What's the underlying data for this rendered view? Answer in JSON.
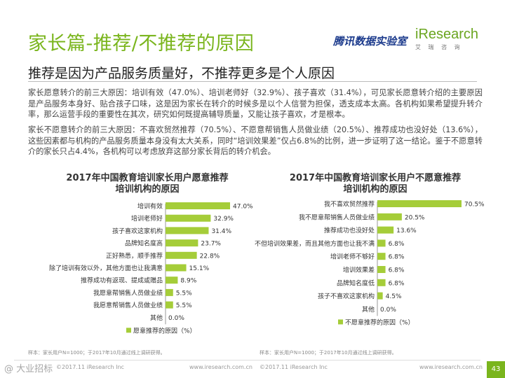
{
  "header": {
    "title": "家长篇-推荐/不推荐的原因",
    "subtitle": "推荐是因为产品服务质量好，不推荐更多是个人原因",
    "logo_tencent": "腾讯数据实验室",
    "logo_iresearch": "iResearch",
    "logo_iresearch_sub": "艾 瑞 咨 询"
  },
  "body": {
    "para1": "家长愿意转介的前三大原因：培训有效（47.0%）、培训老师好（32.9%）、孩子喜欢（31.4%），可见家长愿意转介绍的主要原因是产品服务本身好、贴合孩子口味，这是因为家长在转介的时候多是以个人信誉为担保，透支成本太高。各机构如果希望提升转介率，那么运营手段的重要性在其次，研究如何既提高辅导质量，又能让孩子喜欢，才是根本。",
    "para2": "家长不愿意转介的前三大原因：不喜欢贸然推荐（70.5%）、不愿意帮销售人员做业绩（20.5%）、推荐成功也没好处（13.6%），这些因素都与机构的产品服务质量本身没有太大关系，同时“培训效果差”仅占6.8%的比例，进一步证明了这一结论。鉴于不愿意转介的家长只占4.4%，各机构可以考虑放弃这部分家长背后的转介机会。"
  },
  "chart_data": [
    {
      "type": "bar",
      "orientation": "horizontal",
      "title": "2017年中国教育培训家长用户愿意推荐培训机构的原因",
      "title_line1": "2017年中国教育培训家长用户愿意推荐",
      "title_line2": "培训机构的原因",
      "categories": [
        "培训有效",
        "培训老师好",
        "孩子喜欢这家机构",
        "品牌知名度高",
        "正好熟悉，顺手推荐",
        "除了培训有效以外，其他方面也让我满意",
        "推荐成功有返现、提成或赠品",
        "我愿意帮销售人员做业绩",
        "我愿意帮销售人员做业绩",
        "其他"
      ],
      "values": [
        47.0,
        32.9,
        31.4,
        23.7,
        22.8,
        15.1,
        8.9,
        5.5,
        5.5,
        0.0
      ],
      "value_labels": [
        "47.0%",
        "32.9%",
        "31.4%",
        "23.7%",
        "22.8%",
        "15.1%",
        "8.9%",
        "5.5%",
        "5.5%",
        "0.0%"
      ],
      "legend": "愿意推荐的原因（%）",
      "xlim": [
        0,
        47.0
      ],
      "color": "#a5cd39",
      "source": "样本：家长用户N=1000；于2017年10月通过线上调研获得。"
    },
    {
      "type": "bar",
      "orientation": "horizontal",
      "title": "2017年中国教育培训家长用户不愿意推荐培训机构的原因",
      "title_line1": "2017年中国教育培训家长用户不愿意推荐",
      "title_line2": "培训机构的原因",
      "categories": [
        "我不喜欢贸然推荐",
        "我不愿意帮销售人员做业绩",
        "推荐成功也没好处",
        "不但培训效果差，而且其他方面也让我不满",
        "培训老师不够好",
        "培训效果差",
        "品牌知名度低",
        "孩子不喜欢这家机构",
        "其他"
      ],
      "values": [
        70.5,
        20.5,
        13.6,
        6.8,
        6.8,
        6.8,
        6.8,
        4.5,
        0.0
      ],
      "value_labels": [
        "70.5%",
        "20.5%",
        "13.6%",
        "6.8%",
        "6.8%",
        "6.8%",
        "6.8%",
        "4.5%",
        "0.0%"
      ],
      "legend": "不愿意推荐的原因（%）",
      "xlim": [
        0,
        70.5
      ],
      "color": "#a5cd39",
      "source": "样本：家长用户N=1000；于2017年10月通过线上调研获得。"
    }
  ],
  "footer": {
    "left": "©2017.11 iResearch Inc",
    "mid": "www.iresearch.com.cn",
    "left2": "©2017.11 iResearch Inc",
    "right": "www.iresearch.com.cn",
    "page": "43",
    "watermark": "@ 大业招标"
  }
}
